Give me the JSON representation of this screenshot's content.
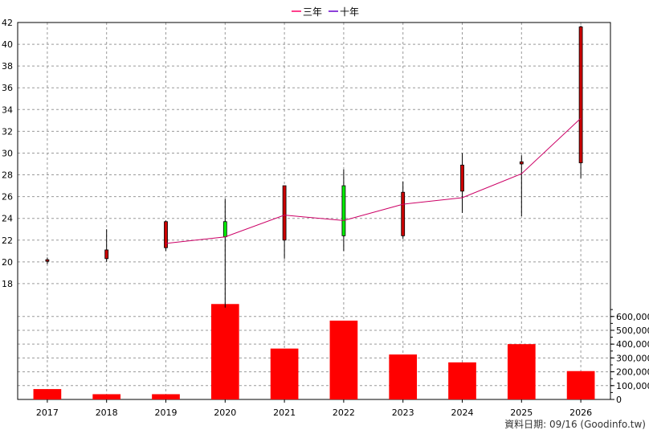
{
  "legend": [
    {
      "label": "三年",
      "color": "#ff0066"
    },
    {
      "label": "十年",
      "color": "#6600cc"
    }
  ],
  "source_note": "資料日期: 09/16 (Goodinfo.tw)",
  "colors": {
    "up": "#cc0000",
    "down": "#00ee00",
    "volume": "#ff0000",
    "line3y": "#cc0066"
  },
  "chart_data": [
    {
      "type": "candlestick",
      "title": "",
      "categories": [
        "2017",
        "2018",
        "2019",
        "2020",
        "2021",
        "2022",
        "2023",
        "2024",
        "2025",
        "2026"
      ],
      "ylim": [
        16,
        42
      ],
      "yticks": [
        18,
        20,
        22,
        24,
        26,
        28,
        30,
        32,
        34,
        36,
        38,
        40,
        42
      ],
      "grid": true,
      "legend_position": "top-center",
      "candles": [
        {
          "x": "2017",
          "open": 20.1,
          "close": 20.2,
          "high": 20.4,
          "low": 19.8
        },
        {
          "x": "2018",
          "open": 20.3,
          "close": 21.1,
          "high": 23.0,
          "low": 20.0
        },
        {
          "x": "2019",
          "open": 21.3,
          "close": 23.7,
          "high": 23.8,
          "low": 21.0
        },
        {
          "x": "2020",
          "open": 23.7,
          "close": 22.3,
          "high": 25.8,
          "low": 15.8
        },
        {
          "x": "2021",
          "open": 22.0,
          "close": 27.0,
          "high": 27.0,
          "low": 20.3
        },
        {
          "x": "2022",
          "open": 27.0,
          "close": 22.4,
          "high": 28.5,
          "low": 21.0
        },
        {
          "x": "2023",
          "open": 22.4,
          "close": 26.4,
          "high": 27.4,
          "low": 22.1
        },
        {
          "x": "2024",
          "open": 26.5,
          "close": 28.9,
          "high": 30.0,
          "low": 24.5
        },
        {
          "x": "2025",
          "open": 29.0,
          "close": 29.2,
          "high": 29.8,
          "low": 24.2
        },
        {
          "x": "2026",
          "open": 29.1,
          "close": 41.6,
          "high": 41.7,
          "low": 27.7
        }
      ],
      "series": [
        {
          "name": "三年",
          "x": [
            "2019",
            "2020",
            "2021",
            "2022",
            "2023",
            "2024",
            "2025",
            "2026"
          ],
          "values": [
            21.7,
            22.3,
            24.3,
            23.8,
            25.3,
            25.9,
            28.1,
            33.2
          ]
        }
      ]
    },
    {
      "type": "bar",
      "categories": [
        "2017",
        "2018",
        "2019",
        "2020",
        "2021",
        "2022",
        "2023",
        "2024",
        "2025",
        "2026"
      ],
      "values": [
        75000,
        38000,
        38000,
        690000,
        368000,
        570000,
        325000,
        268000,
        400000,
        205000
      ],
      "ylim": [
        0,
        680000
      ],
      "yticks": [
        0,
        100000,
        200000,
        300000,
        400000,
        500000,
        600000
      ],
      "ytick_labels": [
        "0",
        "100,000",
        "200,000",
        "300,000",
        "400,000",
        "500,000",
        "600,000"
      ]
    }
  ]
}
